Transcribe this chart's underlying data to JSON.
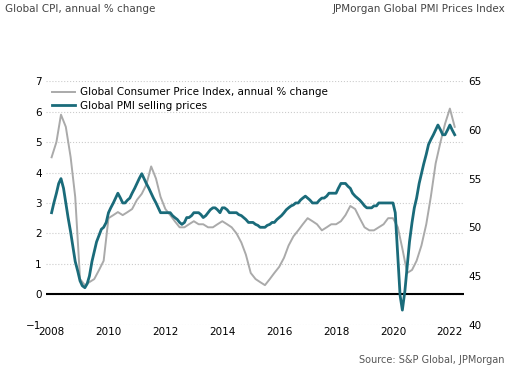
{
  "title_left": "Global CPI, annual % change",
  "title_right": "JPMorgan Global PMI Prices Index",
  "source": "Source: S&P Global, JPMorgan",
  "legend_cpi": "Global Consumer Price Index, annual % change",
  "legend_pmi": "Global PMI selling prices",
  "ylim_left": [
    -1,
    7
  ],
  "ylim_right": [
    40,
    65
  ],
  "yticks_left": [
    -1,
    0,
    1,
    2,
    3,
    4,
    5,
    6,
    7
  ],
  "yticks_right": [
    40,
    45,
    50,
    55,
    60,
    65
  ],
  "xticks": [
    2008,
    2010,
    2012,
    2014,
    2016,
    2018,
    2020,
    2022
  ],
  "color_cpi": "#aaaaaa",
  "color_pmi": "#1a6b7a",
  "color_zero_line": "#000000",
  "background_color": "#ffffff",
  "grid_color": "#cccccc",
  "cpi_data": [
    [
      2008.0,
      4.5
    ],
    [
      2008.17,
      5.0
    ],
    [
      2008.33,
      5.9
    ],
    [
      2008.5,
      5.5
    ],
    [
      2008.67,
      4.5
    ],
    [
      2008.83,
      3.2
    ],
    [
      2009.0,
      0.5
    ],
    [
      2009.17,
      0.3
    ],
    [
      2009.33,
      0.4
    ],
    [
      2009.5,
      0.5
    ],
    [
      2009.67,
      0.8
    ],
    [
      2009.83,
      1.1
    ],
    [
      2010.0,
      2.5
    ],
    [
      2010.17,
      2.6
    ],
    [
      2010.33,
      2.7
    ],
    [
      2010.5,
      2.6
    ],
    [
      2010.67,
      2.7
    ],
    [
      2010.83,
      2.8
    ],
    [
      2011.0,
      3.1
    ],
    [
      2011.17,
      3.3
    ],
    [
      2011.33,
      3.6
    ],
    [
      2011.5,
      4.2
    ],
    [
      2011.67,
      3.8
    ],
    [
      2011.83,
      3.2
    ],
    [
      2012.0,
      2.8
    ],
    [
      2012.17,
      2.6
    ],
    [
      2012.33,
      2.4
    ],
    [
      2012.5,
      2.2
    ],
    [
      2012.67,
      2.2
    ],
    [
      2012.83,
      2.3
    ],
    [
      2013.0,
      2.4
    ],
    [
      2013.17,
      2.3
    ],
    [
      2013.33,
      2.3
    ],
    [
      2013.5,
      2.2
    ],
    [
      2013.67,
      2.2
    ],
    [
      2013.83,
      2.3
    ],
    [
      2014.0,
      2.4
    ],
    [
      2014.17,
      2.3
    ],
    [
      2014.33,
      2.2
    ],
    [
      2014.5,
      2.0
    ],
    [
      2014.67,
      1.7
    ],
    [
      2014.83,
      1.3
    ],
    [
      2015.0,
      0.7
    ],
    [
      2015.17,
      0.5
    ],
    [
      2015.33,
      0.4
    ],
    [
      2015.5,
      0.3
    ],
    [
      2015.67,
      0.5
    ],
    [
      2015.83,
      0.7
    ],
    [
      2016.0,
      0.9
    ],
    [
      2016.17,
      1.2
    ],
    [
      2016.33,
      1.6
    ],
    [
      2016.5,
      1.9
    ],
    [
      2016.67,
      2.1
    ],
    [
      2016.83,
      2.3
    ],
    [
      2017.0,
      2.5
    ],
    [
      2017.17,
      2.4
    ],
    [
      2017.33,
      2.3
    ],
    [
      2017.5,
      2.1
    ],
    [
      2017.67,
      2.2
    ],
    [
      2017.83,
      2.3
    ],
    [
      2018.0,
      2.3
    ],
    [
      2018.17,
      2.4
    ],
    [
      2018.33,
      2.6
    ],
    [
      2018.5,
      2.9
    ],
    [
      2018.67,
      2.8
    ],
    [
      2018.83,
      2.5
    ],
    [
      2019.0,
      2.2
    ],
    [
      2019.17,
      2.1
    ],
    [
      2019.33,
      2.1
    ],
    [
      2019.5,
      2.2
    ],
    [
      2019.67,
      2.3
    ],
    [
      2019.83,
      2.5
    ],
    [
      2020.0,
      2.5
    ],
    [
      2020.17,
      2.2
    ],
    [
      2020.33,
      1.5
    ],
    [
      2020.5,
      0.7
    ],
    [
      2020.67,
      0.8
    ],
    [
      2020.83,
      1.1
    ],
    [
      2021.0,
      1.6
    ],
    [
      2021.17,
      2.3
    ],
    [
      2021.33,
      3.2
    ],
    [
      2021.5,
      4.3
    ],
    [
      2021.67,
      5.0
    ],
    [
      2021.83,
      5.6
    ],
    [
      2022.0,
      6.1
    ],
    [
      2022.17,
      5.5
    ]
  ],
  "pmi_data": [
    [
      2008.0,
      51.5
    ],
    [
      2008.08,
      52.5
    ],
    [
      2008.17,
      53.5
    ],
    [
      2008.25,
      54.5
    ],
    [
      2008.33,
      55.0
    ],
    [
      2008.42,
      54.0
    ],
    [
      2008.5,
      52.5
    ],
    [
      2008.58,
      51.0
    ],
    [
      2008.67,
      49.5
    ],
    [
      2008.75,
      48.0
    ],
    [
      2008.83,
      46.5
    ],
    [
      2008.92,
      45.5
    ],
    [
      2009.0,
      44.5
    ],
    [
      2009.08,
      44.0
    ],
    [
      2009.17,
      43.8
    ],
    [
      2009.25,
      44.2
    ],
    [
      2009.33,
      45.0
    ],
    [
      2009.42,
      46.5
    ],
    [
      2009.5,
      47.5
    ],
    [
      2009.58,
      48.5
    ],
    [
      2009.67,
      49.2
    ],
    [
      2009.75,
      49.8
    ],
    [
      2009.83,
      50.0
    ],
    [
      2009.92,
      50.5
    ],
    [
      2010.0,
      51.5
    ],
    [
      2010.08,
      52.0
    ],
    [
      2010.17,
      52.5
    ],
    [
      2010.25,
      53.0
    ],
    [
      2010.33,
      53.5
    ],
    [
      2010.42,
      53.0
    ],
    [
      2010.5,
      52.5
    ],
    [
      2010.58,
      52.5
    ],
    [
      2010.67,
      52.8
    ],
    [
      2010.75,
      53.0
    ],
    [
      2010.83,
      53.5
    ],
    [
      2010.92,
      54.0
    ],
    [
      2011.0,
      54.5
    ],
    [
      2011.08,
      55.0
    ],
    [
      2011.17,
      55.5
    ],
    [
      2011.25,
      55.0
    ],
    [
      2011.33,
      54.5
    ],
    [
      2011.42,
      54.0
    ],
    [
      2011.5,
      53.5
    ],
    [
      2011.58,
      53.0
    ],
    [
      2011.67,
      52.5
    ],
    [
      2011.75,
      52.0
    ],
    [
      2011.83,
      51.5
    ],
    [
      2011.92,
      51.5
    ],
    [
      2012.0,
      51.5
    ],
    [
      2012.08,
      51.5
    ],
    [
      2012.17,
      51.5
    ],
    [
      2012.25,
      51.2
    ],
    [
      2012.33,
      51.0
    ],
    [
      2012.42,
      50.8
    ],
    [
      2012.5,
      50.5
    ],
    [
      2012.58,
      50.3
    ],
    [
      2012.67,
      50.5
    ],
    [
      2012.75,
      51.0
    ],
    [
      2012.83,
      51.0
    ],
    [
      2012.92,
      51.2
    ],
    [
      2013.0,
      51.5
    ],
    [
      2013.08,
      51.5
    ],
    [
      2013.17,
      51.5
    ],
    [
      2013.25,
      51.3
    ],
    [
      2013.33,
      51.0
    ],
    [
      2013.42,
      51.2
    ],
    [
      2013.5,
      51.5
    ],
    [
      2013.58,
      51.8
    ],
    [
      2013.67,
      52.0
    ],
    [
      2013.75,
      52.0
    ],
    [
      2013.83,
      51.8
    ],
    [
      2013.92,
      51.5
    ],
    [
      2014.0,
      52.0
    ],
    [
      2014.08,
      52.0
    ],
    [
      2014.17,
      51.8
    ],
    [
      2014.25,
      51.5
    ],
    [
      2014.33,
      51.5
    ],
    [
      2014.42,
      51.5
    ],
    [
      2014.5,
      51.5
    ],
    [
      2014.58,
      51.3
    ],
    [
      2014.67,
      51.2
    ],
    [
      2014.75,
      51.0
    ],
    [
      2014.83,
      50.8
    ],
    [
      2014.92,
      50.5
    ],
    [
      2015.0,
      50.5
    ],
    [
      2015.08,
      50.5
    ],
    [
      2015.17,
      50.3
    ],
    [
      2015.25,
      50.2
    ],
    [
      2015.33,
      50.0
    ],
    [
      2015.42,
      50.0
    ],
    [
      2015.5,
      50.0
    ],
    [
      2015.58,
      50.2
    ],
    [
      2015.67,
      50.3
    ],
    [
      2015.75,
      50.5
    ],
    [
      2015.83,
      50.5
    ],
    [
      2015.92,
      50.8
    ],
    [
      2016.0,
      51.0
    ],
    [
      2016.08,
      51.2
    ],
    [
      2016.17,
      51.5
    ],
    [
      2016.25,
      51.8
    ],
    [
      2016.33,
      52.0
    ],
    [
      2016.42,
      52.2
    ],
    [
      2016.5,
      52.3
    ],
    [
      2016.58,
      52.5
    ],
    [
      2016.67,
      52.5
    ],
    [
      2016.75,
      52.8
    ],
    [
      2016.83,
      53.0
    ],
    [
      2016.92,
      53.2
    ],
    [
      2017.0,
      53.0
    ],
    [
      2017.08,
      52.8
    ],
    [
      2017.17,
      52.5
    ],
    [
      2017.25,
      52.5
    ],
    [
      2017.33,
      52.5
    ],
    [
      2017.42,
      52.8
    ],
    [
      2017.5,
      53.0
    ],
    [
      2017.58,
      53.0
    ],
    [
      2017.67,
      53.2
    ],
    [
      2017.75,
      53.5
    ],
    [
      2017.83,
      53.5
    ],
    [
      2017.92,
      53.5
    ],
    [
      2018.0,
      53.5
    ],
    [
      2018.08,
      54.0
    ],
    [
      2018.17,
      54.5
    ],
    [
      2018.25,
      54.5
    ],
    [
      2018.33,
      54.5
    ],
    [
      2018.42,
      54.2
    ],
    [
      2018.5,
      54.0
    ],
    [
      2018.58,
      53.5
    ],
    [
      2018.67,
      53.2
    ],
    [
      2018.75,
      53.0
    ],
    [
      2018.83,
      52.8
    ],
    [
      2018.92,
      52.5
    ],
    [
      2019.0,
      52.2
    ],
    [
      2019.08,
      52.0
    ],
    [
      2019.17,
      52.0
    ],
    [
      2019.25,
      52.0
    ],
    [
      2019.33,
      52.2
    ],
    [
      2019.42,
      52.2
    ],
    [
      2019.5,
      52.5
    ],
    [
      2019.58,
      52.5
    ],
    [
      2019.67,
      52.5
    ],
    [
      2019.75,
      52.5
    ],
    [
      2019.83,
      52.5
    ],
    [
      2019.92,
      52.5
    ],
    [
      2020.0,
      52.5
    ],
    [
      2020.08,
      51.5
    ],
    [
      2020.17,
      47.0
    ],
    [
      2020.25,
      43.0
    ],
    [
      2020.33,
      41.5
    ],
    [
      2020.42,
      43.5
    ],
    [
      2020.5,
      46.0
    ],
    [
      2020.58,
      48.5
    ],
    [
      2020.67,
      50.5
    ],
    [
      2020.75,
      52.0
    ],
    [
      2020.83,
      53.0
    ],
    [
      2020.92,
      54.5
    ],
    [
      2021.0,
      55.5
    ],
    [
      2021.08,
      56.5
    ],
    [
      2021.17,
      57.5
    ],
    [
      2021.25,
      58.5
    ],
    [
      2021.33,
      59.0
    ],
    [
      2021.42,
      59.5
    ],
    [
      2021.5,
      60.0
    ],
    [
      2021.58,
      60.5
    ],
    [
      2021.67,
      60.0
    ],
    [
      2021.75,
      59.5
    ],
    [
      2021.83,
      59.5
    ],
    [
      2021.92,
      60.0
    ],
    [
      2022.0,
      60.5
    ],
    [
      2022.08,
      60.0
    ],
    [
      2022.17,
      59.5
    ]
  ]
}
